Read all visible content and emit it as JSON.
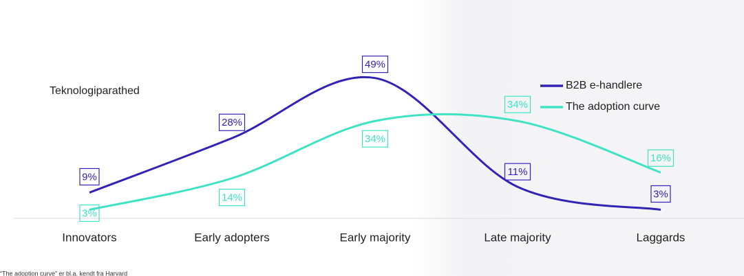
{
  "chart_data": {
    "type": "line",
    "y_label": "Teknologiparathed",
    "categories": [
      "Innovators",
      "Early adopters",
      "Early majority",
      "Late majority",
      "Laggards"
    ],
    "series": [
      {
        "name": "B2B e-handlere",
        "color": "#3223b6",
        "values": [
          9,
          28,
          49,
          11,
          3
        ],
        "value_labels": [
          "9%",
          "28%",
          "49%",
          "11%",
          "3%"
        ]
      },
      {
        "name": "The adoption curve",
        "color": "#3fe3c3",
        "values": [
          3,
          14,
          34,
          34,
          16
        ],
        "value_labels": [
          "3%",
          "14%",
          "34%",
          "34%",
          "16%"
        ]
      }
    ],
    "legend": "top-right",
    "footnote": "“The adoption curve” er bl.a. kendt fra Harvard"
  }
}
